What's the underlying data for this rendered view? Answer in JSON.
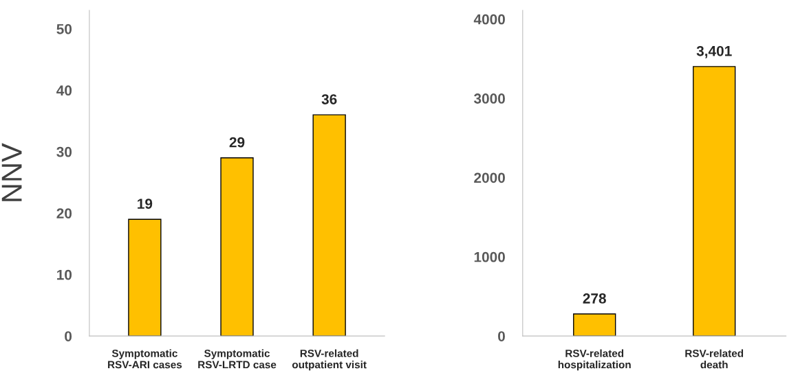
{
  "chart_data": [
    {
      "type": "bar",
      "ylabel": "NNV",
      "categories": [
        "Symptomatic\nRSV-ARI cases",
        "Symptomatic\nRSV-LRTD case",
        "RSV-related\noutpatient visit"
      ],
      "values": [
        19,
        29,
        36
      ],
      "color": "#ffc000",
      "data_labels": true,
      "ylim": [
        0,
        53
      ],
      "yticks": [
        0,
        10,
        20,
        30,
        40,
        50
      ],
      "grid": false,
      "legend": false
    },
    {
      "type": "bar",
      "categories": [
        "RSV-related\nhospitalization",
        "RSV-related\ndeath"
      ],
      "values": [
        278,
        3401
      ],
      "color": "#ffc000",
      "value_labels": [
        "278",
        "3,401"
      ],
      "ylim": [
        0,
        4110
      ],
      "yticks": [
        0,
        1000,
        2000,
        3000,
        4000
      ],
      "grid": false,
      "legend": false
    }
  ]
}
